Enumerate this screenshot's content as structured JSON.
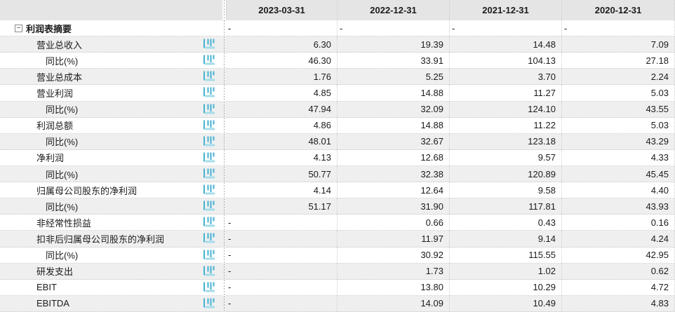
{
  "table": {
    "columns": [
      "2023-03-31",
      "2022-12-31",
      "2021-12-31",
      "2020-12-31"
    ],
    "empty_placeholder": "-",
    "rows": [
      {
        "label": "利润表摘要",
        "indent": 0,
        "group": true,
        "icon": false,
        "values": [
          "-",
          "-",
          "-",
          "-"
        ]
      },
      {
        "label": "营业总收入",
        "indent": 1,
        "group": false,
        "icon": true,
        "values": [
          "6.30",
          "19.39",
          "14.48",
          "7.09"
        ]
      },
      {
        "label": "同比(%)",
        "indent": 2,
        "group": false,
        "icon": true,
        "values": [
          "46.30",
          "33.91",
          "104.13",
          "27.18"
        ]
      },
      {
        "label": "营业总成本",
        "indent": 1,
        "group": false,
        "icon": true,
        "values": [
          "1.76",
          "5.25",
          "3.70",
          "2.24"
        ]
      },
      {
        "label": "营业利润",
        "indent": 1,
        "group": false,
        "icon": true,
        "values": [
          "4.85",
          "14.88",
          "11.27",
          "5.03"
        ]
      },
      {
        "label": "同比(%)",
        "indent": 2,
        "group": false,
        "icon": true,
        "values": [
          "47.94",
          "32.09",
          "124.10",
          "43.55"
        ]
      },
      {
        "label": "利润总额",
        "indent": 1,
        "group": false,
        "icon": true,
        "values": [
          "4.86",
          "14.88",
          "11.22",
          "5.03"
        ]
      },
      {
        "label": "同比(%)",
        "indent": 2,
        "group": false,
        "icon": true,
        "values": [
          "48.01",
          "32.67",
          "123.18",
          "43.29"
        ]
      },
      {
        "label": "净利润",
        "indent": 1,
        "group": false,
        "icon": true,
        "values": [
          "4.13",
          "12.68",
          "9.57",
          "4.33"
        ]
      },
      {
        "label": "同比(%)",
        "indent": 2,
        "group": false,
        "icon": true,
        "values": [
          "50.77",
          "32.38",
          "120.89",
          "45.45"
        ]
      },
      {
        "label": "归属母公司股东的净利润",
        "indent": 1,
        "group": false,
        "icon": true,
        "values": [
          "4.14",
          "12.64",
          "9.58",
          "4.40"
        ]
      },
      {
        "label": "同比(%)",
        "indent": 2,
        "group": false,
        "icon": true,
        "values": [
          "51.17",
          "31.90",
          "117.81",
          "43.93"
        ]
      },
      {
        "label": "非经常性损益",
        "indent": 1,
        "group": false,
        "icon": true,
        "values": [
          "-",
          "0.66",
          "0.43",
          "0.16"
        ]
      },
      {
        "label": "扣非后归属母公司股东的净利润",
        "indent": 1,
        "group": false,
        "icon": true,
        "values": [
          "-",
          "11.97",
          "9.14",
          "4.24"
        ]
      },
      {
        "label": "同比(%)",
        "indent": 2,
        "group": false,
        "icon": true,
        "values": [
          "-",
          "30.92",
          "115.55",
          "42.95"
        ]
      },
      {
        "label": "研发支出",
        "indent": 1,
        "group": false,
        "icon": true,
        "values": [
          "-",
          "1.73",
          "1.02",
          "0.62"
        ]
      },
      {
        "label": "EBIT",
        "indent": 1,
        "group": false,
        "icon": true,
        "values": [
          "-",
          "13.80",
          "10.29",
          "4.72"
        ]
      },
      {
        "label": "EBITDA",
        "indent": 1,
        "group": false,
        "icon": true,
        "values": [
          "-",
          "14.09",
          "10.49",
          "4.83"
        ]
      }
    ]
  },
  "icons": {
    "collapse_glyph": "−",
    "chart_icon_name": "bar-chart-icon",
    "collapse_icon_name": "collapse-minus-icon"
  },
  "colors": {
    "icon_blue": "#45b2d2",
    "icon_blue_light": "#a5dcea",
    "header_bg": "#e5e5e5",
    "row_alt_bg": "#efefef"
  }
}
